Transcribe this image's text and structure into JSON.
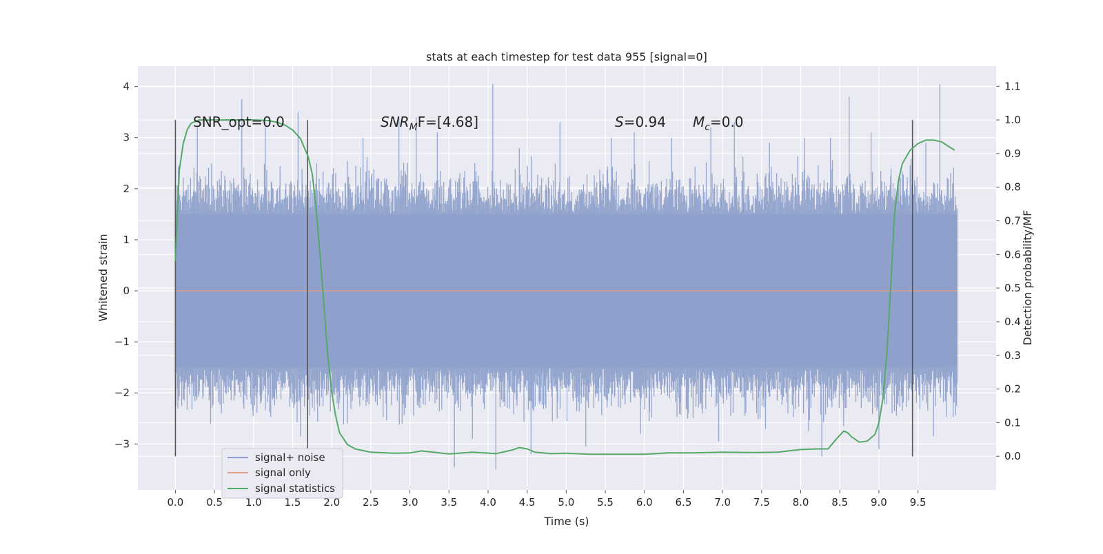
{
  "chart_data": {
    "type": "line",
    "title": "stats at each timestep for test data 955 [signal=0]",
    "xlabel": "Time (s)",
    "ylabel": "Whitened strain",
    "ylabel_right": "Detection probability/MF",
    "xlim": [
      -0.48,
      10.5
    ],
    "ylim": [
      -3.9,
      4.4
    ],
    "ylim_right": [
      -0.1,
      1.16
    ],
    "x_ticks": [
      "0.0",
      "0.5",
      "1.0",
      "1.5",
      "2.0",
      "2.5",
      "3.0",
      "3.5",
      "4.0",
      "4.5",
      "5.0",
      "5.5",
      "6.0",
      "6.5",
      "7.0",
      "7.5",
      "8.0",
      "8.5",
      "9.0",
      "9.5"
    ],
    "y_ticks": [
      "−3",
      "−2",
      "−1",
      "0",
      "1",
      "2",
      "3",
      "4"
    ],
    "y_right_ticks": [
      "0.0",
      "0.1",
      "0.2",
      "0.3",
      "0.4",
      "0.5",
      "0.6",
      "0.7",
      "0.8",
      "0.9",
      "1.0",
      "1.1"
    ],
    "grid": true,
    "legend_position": "lower-left",
    "legend": [
      {
        "label": "signal+ noise",
        "color": "#8da0cb"
      },
      {
        "label": "signal only",
        "color": "#e0a088"
      },
      {
        "label": "signal statistics",
        "color": "#55a868"
      }
    ],
    "annotations": {
      "snr_opt": "SNR_opt=0.0",
      "snr_mf_base": "SNR",
      "snr_mf_sub": "M",
      "snr_mf_rest": "F=[4.68]",
      "s_var": "S",
      "s_val": "=0.94",
      "mc_var": "M",
      "mc_sub": "c",
      "mc_val": "=0.0"
    },
    "markers_x": [
      0.0,
      1.69,
      9.43
    ],
    "series": [
      {
        "name": "signal+ noise",
        "color": "#8da0cb",
        "x_range": [
          0.0,
          10.0
        ],
        "envelope": 1.5,
        "peaks": [
          [
            0.85,
            3.75
          ],
          [
            1.15,
            3.2
          ],
          [
            0.28,
            3.2
          ],
          [
            1.57,
            3.5
          ],
          [
            2.4,
            3.0
          ],
          [
            2.86,
            3.4
          ],
          [
            3.08,
            3.4
          ],
          [
            3.35,
            3.1
          ],
          [
            3.83,
            2.5
          ],
          [
            4.06,
            4.05
          ],
          [
            4.4,
            2.8
          ],
          [
            4.92,
            3.3
          ],
          [
            5.58,
            3.0
          ],
          [
            5.87,
            3.1
          ],
          [
            6.35,
            3.0
          ],
          [
            6.85,
            3.2
          ],
          [
            7.15,
            3.3
          ],
          [
            7.6,
            2.9
          ],
          [
            8.05,
            3.0
          ],
          [
            8.38,
            3.0
          ],
          [
            8.62,
            3.8
          ],
          [
            8.9,
            3.1
          ],
          [
            9.6,
            2.9
          ],
          [
            9.78,
            4.05
          ],
          [
            3.57,
            -3.45
          ],
          [
            4.1,
            -3.5
          ],
          [
            5.25,
            -3.05
          ],
          [
            1.6,
            -2.85
          ],
          [
            8.27,
            -3.25
          ],
          [
            9.0,
            -3.1
          ],
          [
            9.7,
            -2.85
          ],
          [
            6.95,
            -2.95
          ],
          [
            3.8,
            -2.9
          ],
          [
            0.45,
            -2.6
          ],
          [
            5.95,
            -2.8
          ],
          [
            7.55,
            -2.7
          ],
          [
            2.9,
            -2.6
          ],
          [
            8.1,
            -2.75
          ],
          [
            4.55,
            -3.2
          ],
          [
            2.2,
            -2.6
          ]
        ],
        "typical_range": [
          0.0,
          0.9
        ],
        "point_count": 1600
      },
      {
        "name": "signal only",
        "color": "#e0a088",
        "x": [
          0.0,
          10.0
        ],
        "y": [
          0.0,
          0.0
        ]
      },
      {
        "name": "signal statistics",
        "color": "#55a868",
        "axis": "right",
        "x": [
          0.0,
          0.05,
          0.1,
          0.15,
          0.2,
          0.3,
          0.4,
          0.6,
          0.8,
          1.0,
          1.2,
          1.3,
          1.4,
          1.5,
          1.6,
          1.7,
          1.75,
          1.8,
          1.85,
          1.9,
          1.95,
          2.0,
          2.05,
          2.1,
          2.2,
          2.3,
          2.5,
          2.8,
          3.0,
          3.15,
          3.3,
          3.5,
          3.8,
          4.1,
          4.3,
          4.4,
          4.5,
          4.6,
          4.8,
          5.0,
          5.3,
          5.6,
          6.0,
          6.3,
          6.6,
          7.0,
          7.4,
          7.7,
          8.0,
          8.2,
          8.35,
          8.45,
          8.55,
          8.6,
          8.65,
          8.75,
          8.85,
          8.95,
          9.0,
          9.05,
          9.1,
          9.15,
          9.2,
          9.25,
          9.3,
          9.4,
          9.5,
          9.6,
          9.7,
          9.8,
          9.9,
          9.97
        ],
        "y": [
          0.58,
          0.85,
          0.93,
          0.97,
          0.99,
          1.0,
          1.0,
          1.0,
          1.0,
          1.0,
          0.998,
          0.993,
          0.985,
          0.97,
          0.945,
          0.89,
          0.84,
          0.74,
          0.6,
          0.45,
          0.3,
          0.19,
          0.12,
          0.07,
          0.035,
          0.022,
          0.012,
          0.009,
          0.01,
          0.016,
          0.012,
          0.007,
          0.012,
          0.008,
          0.018,
          0.026,
          0.022,
          0.012,
          0.008,
          0.009,
          0.006,
          0.006,
          0.006,
          0.01,
          0.01,
          0.012,
          0.011,
          0.012,
          0.02,
          0.022,
          0.022,
          0.05,
          0.075,
          0.07,
          0.058,
          0.042,
          0.045,
          0.065,
          0.1,
          0.17,
          0.3,
          0.5,
          0.72,
          0.82,
          0.87,
          0.91,
          0.93,
          0.94,
          0.94,
          0.935,
          0.92,
          0.91
        ]
      }
    ]
  }
}
